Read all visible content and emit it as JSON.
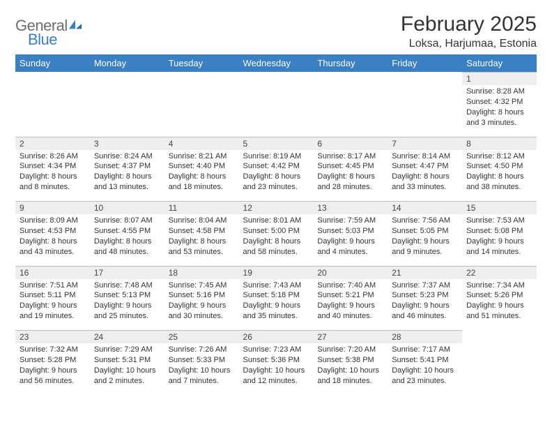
{
  "brand": {
    "line1": "General",
    "line2": "Blue",
    "color_general": "#6d6d6d",
    "color_blue": "#3b7fc4"
  },
  "title": "February 2025",
  "location": "Loksa, Harjumaa, Estonia",
  "colors": {
    "header_bg": "#3b7fc4",
    "header_fg": "#ffffff",
    "daynum_bg": "#eeeeee",
    "rule": "#bfbfbf",
    "text": "#333333"
  },
  "weekdays": [
    "Sunday",
    "Monday",
    "Tuesday",
    "Wednesday",
    "Thursday",
    "Friday",
    "Saturday"
  ],
  "weeks": [
    [
      null,
      null,
      null,
      null,
      null,
      null,
      {
        "d": "1",
        "sunrise": "Sunrise: 8:28 AM",
        "sunset": "Sunset: 4:32 PM",
        "day1": "Daylight: 8 hours",
        "day2": "and 3 minutes."
      }
    ],
    [
      {
        "d": "2",
        "sunrise": "Sunrise: 8:26 AM",
        "sunset": "Sunset: 4:34 PM",
        "day1": "Daylight: 8 hours",
        "day2": "and 8 minutes."
      },
      {
        "d": "3",
        "sunrise": "Sunrise: 8:24 AM",
        "sunset": "Sunset: 4:37 PM",
        "day1": "Daylight: 8 hours",
        "day2": "and 13 minutes."
      },
      {
        "d": "4",
        "sunrise": "Sunrise: 8:21 AM",
        "sunset": "Sunset: 4:40 PM",
        "day1": "Daylight: 8 hours",
        "day2": "and 18 minutes."
      },
      {
        "d": "5",
        "sunrise": "Sunrise: 8:19 AM",
        "sunset": "Sunset: 4:42 PM",
        "day1": "Daylight: 8 hours",
        "day2": "and 23 minutes."
      },
      {
        "d": "6",
        "sunrise": "Sunrise: 8:17 AM",
        "sunset": "Sunset: 4:45 PM",
        "day1": "Daylight: 8 hours",
        "day2": "and 28 minutes."
      },
      {
        "d": "7",
        "sunrise": "Sunrise: 8:14 AM",
        "sunset": "Sunset: 4:47 PM",
        "day1": "Daylight: 8 hours",
        "day2": "and 33 minutes."
      },
      {
        "d": "8",
        "sunrise": "Sunrise: 8:12 AM",
        "sunset": "Sunset: 4:50 PM",
        "day1": "Daylight: 8 hours",
        "day2": "and 38 minutes."
      }
    ],
    [
      {
        "d": "9",
        "sunrise": "Sunrise: 8:09 AM",
        "sunset": "Sunset: 4:53 PM",
        "day1": "Daylight: 8 hours",
        "day2": "and 43 minutes."
      },
      {
        "d": "10",
        "sunrise": "Sunrise: 8:07 AM",
        "sunset": "Sunset: 4:55 PM",
        "day1": "Daylight: 8 hours",
        "day2": "and 48 minutes."
      },
      {
        "d": "11",
        "sunrise": "Sunrise: 8:04 AM",
        "sunset": "Sunset: 4:58 PM",
        "day1": "Daylight: 8 hours",
        "day2": "and 53 minutes."
      },
      {
        "d": "12",
        "sunrise": "Sunrise: 8:01 AM",
        "sunset": "Sunset: 5:00 PM",
        "day1": "Daylight: 8 hours",
        "day2": "and 58 minutes."
      },
      {
        "d": "13",
        "sunrise": "Sunrise: 7:59 AM",
        "sunset": "Sunset: 5:03 PM",
        "day1": "Daylight: 9 hours",
        "day2": "and 4 minutes."
      },
      {
        "d": "14",
        "sunrise": "Sunrise: 7:56 AM",
        "sunset": "Sunset: 5:05 PM",
        "day1": "Daylight: 9 hours",
        "day2": "and 9 minutes."
      },
      {
        "d": "15",
        "sunrise": "Sunrise: 7:53 AM",
        "sunset": "Sunset: 5:08 PM",
        "day1": "Daylight: 9 hours",
        "day2": "and 14 minutes."
      }
    ],
    [
      {
        "d": "16",
        "sunrise": "Sunrise: 7:51 AM",
        "sunset": "Sunset: 5:11 PM",
        "day1": "Daylight: 9 hours",
        "day2": "and 19 minutes."
      },
      {
        "d": "17",
        "sunrise": "Sunrise: 7:48 AM",
        "sunset": "Sunset: 5:13 PM",
        "day1": "Daylight: 9 hours",
        "day2": "and 25 minutes."
      },
      {
        "d": "18",
        "sunrise": "Sunrise: 7:45 AM",
        "sunset": "Sunset: 5:16 PM",
        "day1": "Daylight: 9 hours",
        "day2": "and 30 minutes."
      },
      {
        "d": "19",
        "sunrise": "Sunrise: 7:43 AM",
        "sunset": "Sunset: 5:18 PM",
        "day1": "Daylight: 9 hours",
        "day2": "and 35 minutes."
      },
      {
        "d": "20",
        "sunrise": "Sunrise: 7:40 AM",
        "sunset": "Sunset: 5:21 PM",
        "day1": "Daylight: 9 hours",
        "day2": "and 40 minutes."
      },
      {
        "d": "21",
        "sunrise": "Sunrise: 7:37 AM",
        "sunset": "Sunset: 5:23 PM",
        "day1": "Daylight: 9 hours",
        "day2": "and 46 minutes."
      },
      {
        "d": "22",
        "sunrise": "Sunrise: 7:34 AM",
        "sunset": "Sunset: 5:26 PM",
        "day1": "Daylight: 9 hours",
        "day2": "and 51 minutes."
      }
    ],
    [
      {
        "d": "23",
        "sunrise": "Sunrise: 7:32 AM",
        "sunset": "Sunset: 5:28 PM",
        "day1": "Daylight: 9 hours",
        "day2": "and 56 minutes."
      },
      {
        "d": "24",
        "sunrise": "Sunrise: 7:29 AM",
        "sunset": "Sunset: 5:31 PM",
        "day1": "Daylight: 10 hours",
        "day2": "and 2 minutes."
      },
      {
        "d": "25",
        "sunrise": "Sunrise: 7:26 AM",
        "sunset": "Sunset: 5:33 PM",
        "day1": "Daylight: 10 hours",
        "day2": "and 7 minutes."
      },
      {
        "d": "26",
        "sunrise": "Sunrise: 7:23 AM",
        "sunset": "Sunset: 5:36 PM",
        "day1": "Daylight: 10 hours",
        "day2": "and 12 minutes."
      },
      {
        "d": "27",
        "sunrise": "Sunrise: 7:20 AM",
        "sunset": "Sunset: 5:38 PM",
        "day1": "Daylight: 10 hours",
        "day2": "and 18 minutes."
      },
      {
        "d": "28",
        "sunrise": "Sunrise: 7:17 AM",
        "sunset": "Sunset: 5:41 PM",
        "day1": "Daylight: 10 hours",
        "day2": "and 23 minutes."
      },
      null
    ]
  ]
}
